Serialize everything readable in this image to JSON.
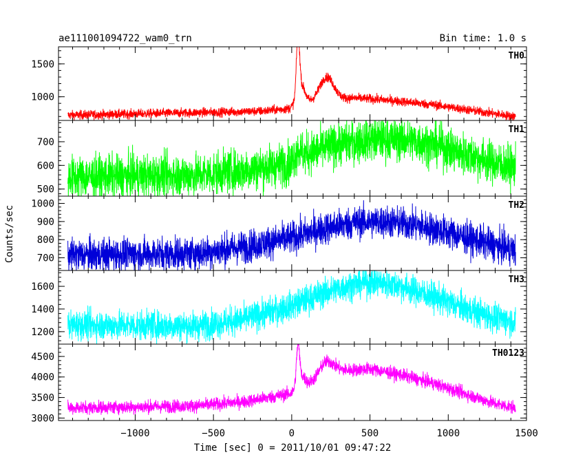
{
  "chart_data": {
    "type": "line",
    "title": "ae111001094722_wam0_trn",
    "bin_time": "Bin time: 1.0 s",
    "xlabel": "Time [sec] 0 = 2011/10/01 09:47:22",
    "ylabel": "Counts/sec",
    "xlim": [
      -1490,
      1500
    ],
    "x_ticks": [
      -1000,
      -500,
      0,
      500,
      1000,
      1500
    ],
    "x_tick_labels": [
      "−1000",
      "−500",
      "0",
      "500",
      "1000",
      "1500"
    ],
    "grid": false,
    "panels": [
      {
        "name": "TH0",
        "color": "#ff0000",
        "ylim": [
          640,
          1760
        ],
        "y_ticks": [
          1000,
          1500
        ],
        "y_tick_labels": [
          "1000",
          "1500"
        ],
        "noise": 35,
        "baseline": [
          [
            -1430,
            720
          ],
          [
            -1000,
            740
          ],
          [
            -600,
            760
          ],
          [
            -200,
            780
          ],
          [
            -20,
            820
          ],
          [
            0,
            840
          ],
          [
            100,
            900
          ],
          [
            200,
            980
          ],
          [
            300,
            970
          ],
          [
            400,
            980
          ],
          [
            500,
            970
          ],
          [
            700,
            930
          ],
          [
            900,
            880
          ],
          [
            1100,
            810
          ],
          [
            1300,
            740
          ],
          [
            1430,
            700
          ]
        ],
        "peaks": [
          [
            40,
            900,
            10
          ],
          [
            60,
            300,
            25
          ],
          [
            225,
            320,
            45
          ]
        ]
      },
      {
        "name": "TH1",
        "color": "#00ff00",
        "ylim": [
          470,
          790
        ],
        "y_ticks": [
          500,
          600,
          700
        ],
        "y_tick_labels": [
          "500",
          "600",
          "700"
        ],
        "noise": 45,
        "baseline": [
          [
            -1430,
            550
          ],
          [
            -1000,
            555
          ],
          [
            -600,
            560
          ],
          [
            -300,
            580
          ],
          [
            0,
            610
          ],
          [
            100,
            650
          ],
          [
            300,
            690
          ],
          [
            500,
            710
          ],
          [
            700,
            710
          ],
          [
            900,
            690
          ],
          [
            1100,
            650
          ],
          [
            1300,
            610
          ],
          [
            1430,
            590
          ]
        ],
        "peaks": [
          [
            40,
            40,
            20
          ]
        ]
      },
      {
        "name": "TH2",
        "color": "#0000d8",
        "ylim": [
          630,
          1040
        ],
        "y_ticks": [
          700,
          800,
          900,
          1000
        ],
        "y_tick_labels": [
          "700",
          "800",
          "900",
          "1000"
        ],
        "noise": 45,
        "baseline": [
          [
            -1430,
            715
          ],
          [
            -1000,
            720
          ],
          [
            -600,
            725
          ],
          [
            -300,
            760
          ],
          [
            0,
            810
          ],
          [
            200,
            860
          ],
          [
            400,
            895
          ],
          [
            600,
            900
          ],
          [
            800,
            880
          ],
          [
            1000,
            840
          ],
          [
            1200,
            790
          ],
          [
            1430,
            740
          ]
        ],
        "peaks": []
      },
      {
        "name": "TH3",
        "color": "#00ffff",
        "ylim": [
          1090,
          1740
        ],
        "y_ticks": [
          1200,
          1400,
          1600
        ],
        "y_tick_labels": [
          "1200",
          "1400",
          "1600"
        ],
        "noise": 65,
        "baseline": [
          [
            -1430,
            1260
          ],
          [
            -1000,
            1255
          ],
          [
            -600,
            1250
          ],
          [
            -300,
            1310
          ],
          [
            0,
            1430
          ],
          [
            200,
            1540
          ],
          [
            400,
            1620
          ],
          [
            550,
            1640
          ],
          [
            700,
            1600
          ],
          [
            900,
            1510
          ],
          [
            1100,
            1410
          ],
          [
            1300,
            1320
          ],
          [
            1430,
            1290
          ]
        ],
        "peaks": []
      },
      {
        "name": "TH0123",
        "color": "#ff00ff",
        "ylim": [
          2940,
          4800
        ],
        "y_ticks": [
          3000,
          3500,
          4000,
          4500
        ],
        "y_tick_labels": [
          "3000",
          "3500",
          "4000",
          "4500"
        ],
        "noise": 80,
        "baseline": [
          [
            -1430,
            3250
          ],
          [
            -1000,
            3270
          ],
          [
            -600,
            3300
          ],
          [
            -300,
            3400
          ],
          [
            0,
            3600
          ],
          [
            100,
            3800
          ],
          [
            200,
            4050
          ],
          [
            300,
            4150
          ],
          [
            500,
            4200
          ],
          [
            700,
            4050
          ],
          [
            900,
            3850
          ],
          [
            1100,
            3600
          ],
          [
            1300,
            3350
          ],
          [
            1430,
            3250
          ]
        ],
        "peaks": [
          [
            40,
            900,
            10
          ],
          [
            60,
            300,
            25
          ],
          [
            225,
            300,
            45
          ]
        ]
      }
    ]
  }
}
